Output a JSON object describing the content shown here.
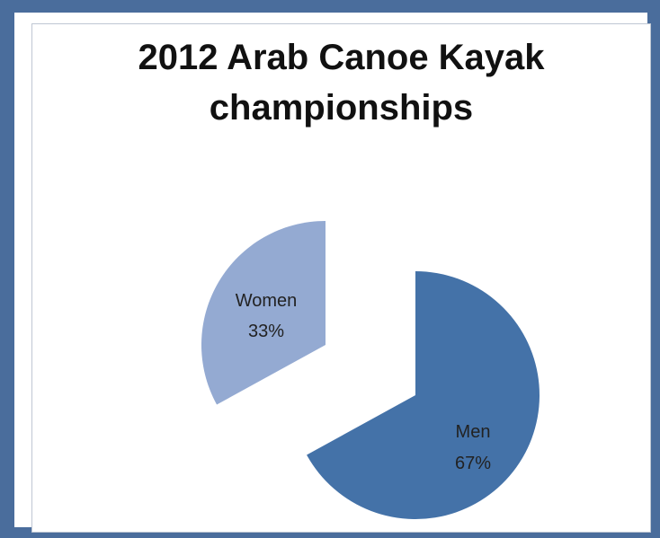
{
  "chart_data": {
    "type": "pie",
    "title": "2012 Arab Canoe Kayak championships",
    "slices": [
      {
        "label": "Men",
        "value": 67,
        "value_label": "67%",
        "color": "#4472a8"
      },
      {
        "label": "Women",
        "value": 33,
        "value_label": "33%",
        "color": "#94aad2"
      }
    ],
    "exploded": true
  }
}
